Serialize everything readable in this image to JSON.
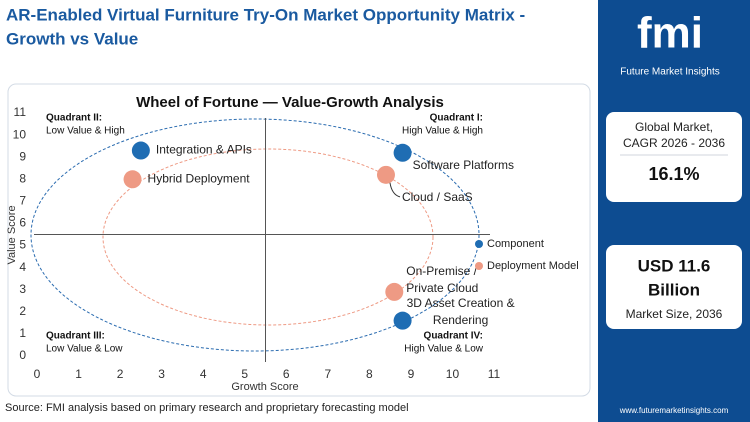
{
  "header": {
    "title_lines": [
      "AR-Enabled Virtual Furniture Try-On Market  Opportunity Matrix -",
      "Growth vs Value"
    ]
  },
  "chart_data": {
    "type": "scatter",
    "title": "Wheel of Fortune — Value-Growth  Analysis",
    "x_label": "Growth Score",
    "y_label": "Value Score",
    "xlim": [
      0,
      11
    ],
    "ylim": [
      0,
      11
    ],
    "xticks": [
      0,
      1,
      2,
      3,
      4,
      5,
      6,
      7,
      8,
      9,
      10,
      11
    ],
    "yticks": [
      0,
      1,
      2,
      3,
      4,
      5,
      6,
      7,
      8,
      9,
      10,
      11
    ],
    "grid": false,
    "legend": "right",
    "series": [
      {
        "name": "Component",
        "color": "#1f6db3",
        "x": [
          2.5,
          8.8,
          8.8
        ],
        "values": [
          9.3,
          9.2,
          1.6
        ],
        "labels": [
          [
            "Integration & APIs"
          ],
          [
            "Software Platforms"
          ],
          [
            "3D Asset Creation &",
            "Rendering"
          ]
        ]
      },
      {
        "name": "Deployment Model",
        "color": "#ee9a84",
        "x": [
          2.3,
          8.4,
          8.6
        ],
        "values": [
          8.0,
          8.2,
          2.9
        ],
        "labels": [
          [
            "Hybrid Deployment"
          ],
          [
            "Cloud / SaaS"
          ],
          [
            "On-Premise /",
            "Private Cloud"
          ]
        ]
      }
    ],
    "annotations": [
      {
        "title": "Quadrant II:",
        "text": "Low Value & High"
      },
      {
        "title": "Quadrant I:",
        "text": "High Value & High"
      },
      {
        "title": "Quadrant III:",
        "text": "Low Value & Low"
      },
      {
        "title": "Quadrant IV:",
        "text": "High Value & Low"
      }
    ]
  },
  "sidebar": {
    "logo": "fmi",
    "brand": "Future Market Insights",
    "stats": [
      {
        "label_lines": [
          "Global Market,",
          "CAGR 2026 - 2036"
        ],
        "value_lines": [
          "16.1%"
        ]
      },
      {
        "value_lines": [
          "USD 11.6",
          "Billion"
        ],
        "label_lines": [
          "Market Size, 2036"
        ]
      }
    ],
    "url": "www.futuremarketinsights.com"
  },
  "footer": {
    "source": "Source: FMI analysis based on primary research and proprietary forecasting model"
  }
}
